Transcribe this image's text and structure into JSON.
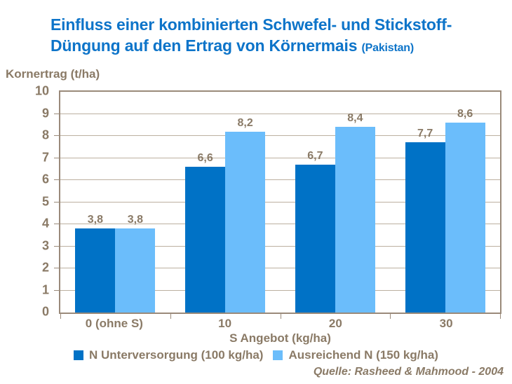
{
  "title": {
    "line1": "Einfluss einer kombinierten Schwefel- und Stickstoff-",
    "line2": "Düngung auf den Ertrag von Körnermais",
    "suffix": "(Pakistan)"
  },
  "source": "Quelle: Rasheed & Mahmood - 2004",
  "colors": {
    "title_blue": "#0d74c9",
    "series1_dark_blue": "#0072c6",
    "series2_light_blue": "#6bbdfb",
    "axis_text_brown": "#8a7a66",
    "axis_line": "#9a8a7a",
    "gridline": "#bcb0a0"
  },
  "chart_data": {
    "type": "bar",
    "title": "Einfluss einer kombinierten Schwefel- und Stickstoff-Düngung auf den Ertrag von Körnermais (Pakistan)",
    "categories": [
      "0 (ohne S)",
      "10",
      "20",
      "30"
    ],
    "series": [
      {
        "name": "N Unterversorgung (100 kg/ha)",
        "values": [
          3.8,
          6.6,
          6.7,
          7.7
        ],
        "labels": [
          "3,8",
          "6,6",
          "6,7",
          "7,7"
        ],
        "color": "#0072c6"
      },
      {
        "name": "Ausreichend N (150 kg/ha)",
        "values": [
          3.8,
          8.2,
          8.4,
          8.6
        ],
        "labels": [
          "3,8",
          "8,2",
          "8,4",
          "8,6"
        ],
        "color": "#6bbdfb"
      }
    ],
    "xlabel": "S Angebot (kg/ha)",
    "ylabel": "Kornertrag (t/ha)",
    "ylim": [
      0,
      10
    ],
    "ytick_step": 1,
    "yticks": [
      "10",
      "9",
      "8",
      "7",
      "6",
      "5",
      "4",
      "3",
      "2",
      "1",
      "0"
    ],
    "grid": true,
    "legend_position": "bottom"
  }
}
